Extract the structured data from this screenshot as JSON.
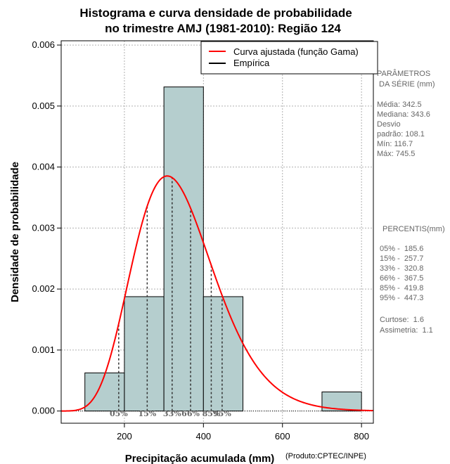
{
  "chart_data": {
    "type": "histogram",
    "title": "Histograma e curva densidade de probabilidade",
    "subtitle": "no trimestre AMJ (1981-2010): Região 124",
    "xlabel": "Precipitação acumulada (mm)",
    "ylabel": "Densidade de probabilidade",
    "credit": "(Produto:CPTEC/INPE)",
    "xlim": [
      40,
      830
    ],
    "ylim": [
      -0.0002,
      0.00607
    ],
    "x_ticks": [
      200,
      400,
      600,
      800
    ],
    "y_ticks": [
      0.0,
      0.001,
      0.002,
      0.003,
      0.004,
      0.005,
      0.006
    ],
    "y_tick_labels": [
      "0.000",
      "0.001",
      "0.002",
      "0.003",
      "0.004",
      "0.005",
      "0.006"
    ],
    "grid": true,
    "bar_color": "#b5cece",
    "curve_color": "#ff0000",
    "bins": [
      {
        "from": 100,
        "to": 200,
        "density": 0.000625
      },
      {
        "from": 200,
        "to": 300,
        "density": 0.001875
      },
      {
        "from": 300,
        "to": 400,
        "density": 0.005313
      },
      {
        "from": 400,
        "to": 500,
        "density": 0.001875
      },
      {
        "from": 700,
        "to": 800,
        "density": 0.000313
      }
    ],
    "gamma_fit": {
      "mean": 342.5,
      "sd": 108.1
    },
    "percentiles": [
      {
        "label": "05%",
        "value": 185.6
      },
      {
        "label": "15%",
        "value": 257.7
      },
      {
        "label": "33%",
        "value": 320.8
      },
      {
        "label": "66%",
        "value": 367.5
      },
      {
        "label": "85%",
        "value": 419.8
      },
      {
        "label": "95%",
        "value": 447.3
      }
    ],
    "legend": [
      {
        "label": "Curva ajustada (função Gama)",
        "color": "#ff0000"
      },
      {
        "label": "Empírica",
        "color": "#000000"
      }
    ]
  },
  "side_panel": {
    "parametros": [
      "PARÂMETROS",
      " DA SÉRIE (mm)",
      "",
      "Média:  342.5",
      "Mediana:  343.6",
      "Desvio",
      "padrão:  108.1",
      "Mín:  116.7",
      "Máx:  745.5"
    ],
    "percentis_header": "PERCENTIS(mm)",
    "percentis": [
      "05% -  185.6",
      "15% -  257.7",
      "33% -  320.8",
      "66% -  367.5",
      "85% -  419.8",
      "95% -  447.3",
      "",
      "Curtose:  1.6",
      "Assimetria:  1.1"
    ]
  }
}
